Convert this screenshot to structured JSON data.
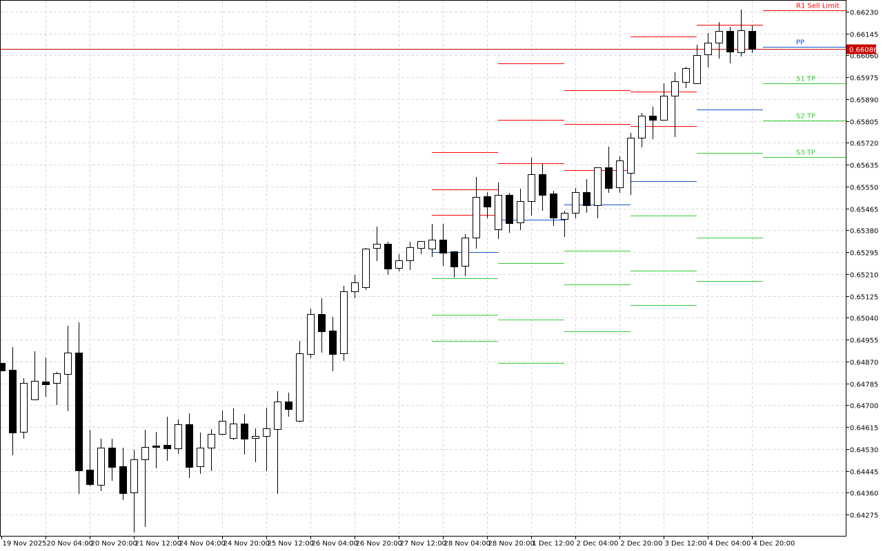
{
  "chart_data": {
    "type": "candlestick",
    "timeframe_hours": 4,
    "ylim": [
      0.6423,
      0.6626
    ],
    "grid": true,
    "y_ticks": [
      "0.66230",
      "0.66145",
      "0.66060",
      "0.65975",
      "0.65890",
      "0.65805",
      "0.65720",
      "0.65635",
      "0.65550",
      "0.65465",
      "0.65380",
      "0.65295",
      "0.65210",
      "0.65125",
      "0.65040",
      "0.64955",
      "0.64870",
      "0.64785",
      "0.64700",
      "0.64615",
      "0.64530",
      "0.64445",
      "0.64360",
      "0.64275"
    ],
    "x_ticks": [
      "19 Nov 2025",
      "20 Nov 04:00",
      "20 Nov 20:00",
      "21 Nov 12:00",
      "24 Nov 04:00",
      "24 Nov 20:00",
      "25 Nov 12:00",
      "26 Nov 04:00",
      "26 Nov 20:00",
      "27 Nov 12:00",
      "28 Nov 04:00",
      "28 Nov 20:00",
      "1 Dec 12:00",
      "2 Dec 04:00",
      "2 Dec 20:00",
      "3 Dec 12:00",
      "4 Dec 04:00",
      "4 Dec 20:00"
    ],
    "x_tick_every_bars": 4,
    "candles": [
      [
        0.64864,
        0.64864,
        0.64835,
        0.64835
      ],
      [
        0.64837,
        0.64926,
        0.64505,
        0.64594
      ],
      [
        0.64596,
        0.64805,
        0.6457,
        0.64787
      ],
      [
        0.64722,
        0.6491,
        0.64722,
        0.64795
      ],
      [
        0.64792,
        0.64886,
        0.64733,
        0.64781
      ],
      [
        0.64787,
        0.64829,
        0.64701,
        0.64824
      ],
      [
        0.64821,
        0.65009,
        0.64677,
        0.64904
      ],
      [
        0.64904,
        0.65022,
        0.64355,
        0.64446
      ],
      [
        0.64449,
        0.64604,
        0.64385,
        0.64393
      ],
      [
        0.6439,
        0.6457,
        0.64366,
        0.64535
      ],
      [
        0.64535,
        0.6457,
        0.64406,
        0.6446
      ],
      [
        0.64462,
        0.64535,
        0.64331,
        0.64358
      ],
      [
        0.64361,
        0.64527,
        0.64205,
        0.64489
      ],
      [
        0.64489,
        0.64604,
        0.64227,
        0.64537
      ],
      [
        0.64543,
        0.64596,
        0.64454,
        0.64537
      ],
      [
        0.64546,
        0.64655,
        0.64484,
        0.64532
      ],
      [
        0.64532,
        0.64645,
        0.64511,
        0.64626
      ],
      [
        0.64626,
        0.64669,
        0.64417,
        0.6446
      ],
      [
        0.64462,
        0.64594,
        0.64433,
        0.64535
      ],
      [
        0.64535,
        0.64607,
        0.64444,
        0.64588
      ],
      [
        0.64588,
        0.64679,
        0.64583,
        0.64639
      ],
      [
        0.64572,
        0.64688,
        0.64564,
        0.64629
      ],
      [
        0.64629,
        0.64666,
        0.64508,
        0.6457
      ],
      [
        0.64572,
        0.6461,
        0.64479,
        0.6458
      ],
      [
        0.6458,
        0.6469,
        0.64444,
        0.6461
      ],
      [
        0.64607,
        0.64754,
        0.64355,
        0.64714
      ],
      [
        0.64714,
        0.64749,
        0.64655,
        0.64685
      ],
      [
        0.64639,
        0.6495,
        0.64634,
        0.64902
      ],
      [
        0.64899,
        0.65076,
        0.64883,
        0.65054
      ],
      [
        0.65054,
        0.65116,
        0.64904,
        0.64987
      ],
      [
        0.6499,
        0.65044,
        0.64832,
        0.64899
      ],
      [
        0.64902,
        0.65164,
        0.64872,
        0.65143
      ],
      [
        0.65143,
        0.65207,
        0.65116,
        0.65178
      ],
      [
        0.65159,
        0.65311,
        0.65148,
        0.65309
      ],
      [
        0.65311,
        0.65395,
        0.65261,
        0.65328
      ],
      [
        0.65328,
        0.65336,
        0.65207,
        0.65231
      ],
      [
        0.65234,
        0.65287,
        0.6522,
        0.65263
      ],
      [
        0.65263,
        0.65336,
        0.65226,
        0.65314
      ],
      [
        0.65311,
        0.65338,
        0.65287,
        0.65338
      ],
      [
        0.65309,
        0.65405,
        0.65277,
        0.65344
      ],
      [
        0.65344,
        0.65405,
        0.65242,
        0.65293
      ],
      [
        0.65298,
        0.65298,
        0.65196,
        0.65239
      ],
      [
        0.65242,
        0.65365,
        0.65202,
        0.65352
      ],
      [
        0.65352,
        0.65587,
        0.65309,
        0.6551
      ],
      [
        0.65512,
        0.65528,
        0.65427,
        0.65472
      ],
      [
        0.65384,
        0.65566,
        0.65346,
        0.65518
      ],
      [
        0.65518,
        0.65526,
        0.6537,
        0.65408
      ],
      [
        0.65411,
        0.65542,
        0.65381,
        0.65494
      ],
      [
        0.65494,
        0.65662,
        0.65437,
        0.65598
      ],
      [
        0.65598,
        0.65638,
        0.65456,
        0.65518
      ],
      [
        0.65523,
        0.65534,
        0.65397,
        0.65429
      ],
      [
        0.65424,
        0.65456,
        0.65354,
        0.65448
      ],
      [
        0.65448,
        0.65544,
        0.65427,
        0.65528
      ],
      [
        0.65528,
        0.65579,
        0.65448,
        0.65477
      ],
      [
        0.65477,
        0.65625,
        0.65427,
        0.65625
      ],
      [
        0.65625,
        0.65705,
        0.65526,
        0.65544
      ],
      [
        0.65547,
        0.65668,
        0.65526,
        0.65652
      ],
      [
        0.65603,
        0.65759,
        0.65518,
        0.6574
      ],
      [
        0.6574,
        0.65836,
        0.65702,
        0.65826
      ],
      [
        0.65826,
        0.6586,
        0.65735,
        0.6581
      ],
      [
        0.6581,
        0.65952,
        0.65807,
        0.65903
      ],
      [
        0.65903,
        0.65994,
        0.65743,
        0.6596
      ],
      [
        0.65957,
        0.66016,
        0.65933,
        0.6601
      ],
      [
        0.65952,
        0.66102,
        0.65952,
        0.66061
      ],
      [
        0.66064,
        0.66147,
        0.66013,
        0.6611
      ],
      [
        0.6611,
        0.6619,
        0.66048,
        0.66155
      ],
      [
        0.66155,
        0.66171,
        0.66029,
        0.66075
      ],
      [
        0.66072,
        0.66238,
        0.66056,
        0.66158
      ],
      [
        0.66155,
        0.66176,
        0.66069,
        0.66086
      ]
    ],
    "candle_fields": [
      "open",
      "high",
      "low",
      "close"
    ],
    "current_price": "0.66086",
    "pivot_days": [
      {
        "day": "28 Nov",
        "start_bar": 39,
        "R3": 0.65684,
        "R2": 0.65539,
        "R1": 0.6544,
        "PP": 0.65295,
        "S1": 0.65194,
        "S2": 0.65052,
        "S3": 0.6495
      },
      {
        "day": "1 Dec",
        "start_bar": 45,
        "R3": 0.66029,
        "R2": 0.6581,
        "R1": 0.65641,
        "PP": 0.65421,
        "S1": 0.65253,
        "S2": 0.65033,
        "S3": 0.64864
      },
      {
        "day": "2 Dec",
        "start_bar": 51,
        "R3": 0.65925,
        "R2": 0.65794,
        "R1": 0.65614,
        "PP": 0.6548,
        "S1": 0.65301,
        "S2": 0.6517,
        "S3": 0.64987
      },
      {
        "day": "3 Dec",
        "start_bar": 57,
        "R3": 0.66134,
        "R2": 0.65919,
        "R1": 0.65786,
        "PP": 0.65571,
        "S1": 0.65437,
        "S2": 0.65223,
        "S3": 0.65089
      },
      {
        "day": "4 Dec",
        "start_bar": 63,
        "R1": 0.66179,
        "PP": 0.6585,
        "S1": 0.65681,
        "S2": 0.65352,
        "S3": 0.65183
      }
    ],
    "current_levels": [
      {
        "key": "R1",
        "label": "R1 Sell Limit",
        "price": 0.66235,
        "color": "#ff0000"
      },
      {
        "key": "PP",
        "label": "PP",
        "price": 0.66093,
        "color": "#1450c8"
      },
      {
        "key": "S1",
        "label": "S1 TP",
        "price": 0.65951,
        "color": "#33cc33"
      },
      {
        "key": "S2",
        "label": "S2 TP",
        "price": 0.65807,
        "color": "#33cc33"
      },
      {
        "key": "S3",
        "label": "S3 TP",
        "price": 0.65665,
        "color": "#33cc33"
      }
    ],
    "colors": {
      "resistance": "#ff0000",
      "pivot": "#1450c8",
      "support": "#33cc33",
      "price_line": "#c80000",
      "price_label_bg": "#c80000",
      "bull_body": "#ffffff",
      "bear_body": "#000000",
      "grid": "#d8d8d8"
    }
  }
}
